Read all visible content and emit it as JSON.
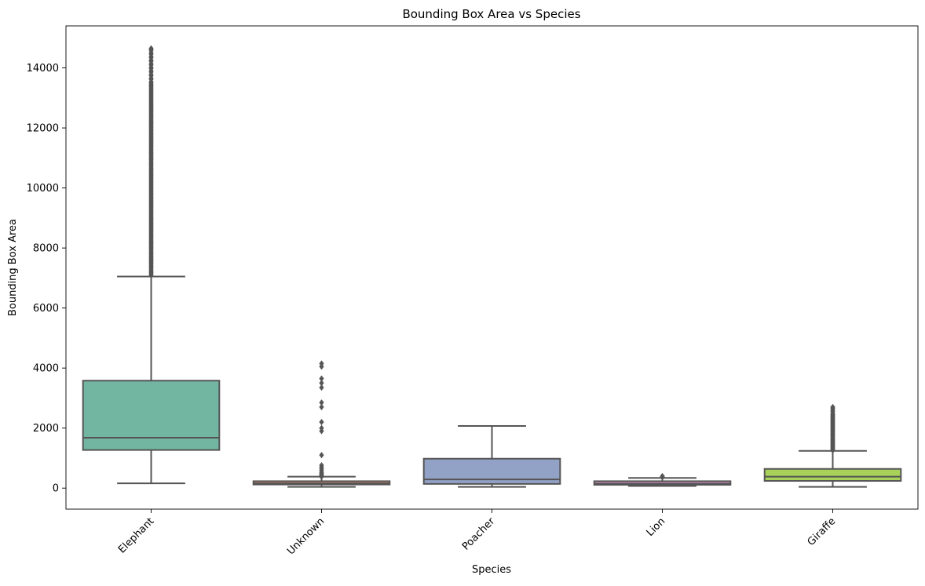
{
  "chart_data": {
    "type": "box",
    "title": "Bounding Box Area vs Species",
    "xlabel": "Species",
    "ylabel": "Bounding Box Area",
    "ylim": [
      -700,
      15400
    ],
    "yticks": [
      0,
      2000,
      4000,
      6000,
      8000,
      10000,
      12000,
      14000
    ],
    "ytick_labels": [
      "0",
      "2000",
      "4000",
      "6000",
      "8000",
      "10000",
      "12000",
      "14000"
    ],
    "categories": [
      "Elephant",
      "Unknown",
      "Poacher",
      "Lion",
      "Giraffe"
    ],
    "xtick_rotation_deg": 45,
    "grid": false,
    "legend": "none",
    "boxes": [
      {
        "category": "Elephant",
        "color": "#72b6a1",
        "whisker_low": 160,
        "q1": 1270,
        "median": 1680,
        "q3": 3580,
        "whisker_high": 7050,
        "outliers_range": [
          7100,
          14650
        ]
      },
      {
        "category": "Unknown",
        "color": "#e5896e",
        "whisker_low": 40,
        "q1": 120,
        "median": 160,
        "q3": 230,
        "whisker_high": 380,
        "outliers": [
          380,
          420,
          450,
          480,
          520,
          580,
          640,
          700,
          760,
          1100,
          1900,
          2000,
          2200,
          2700,
          2850,
          3350,
          3500,
          3650,
          4050,
          4150
        ]
      },
      {
        "category": "Poacher",
        "color": "#92a1c6",
        "whisker_low": 40,
        "q1": 140,
        "median": 290,
        "q3": 980,
        "whisker_high": 2070,
        "outliers": []
      },
      {
        "category": "Lion",
        "color": "#d58ec3",
        "whisker_low": 70,
        "q1": 110,
        "median": 150,
        "q3": 230,
        "whisker_high": 340,
        "outliers": [
          360,
          380,
          400
        ]
      },
      {
        "category": "Giraffe",
        "color": "#a8d15a",
        "whisker_low": 40,
        "q1": 240,
        "median": 380,
        "q3": 640,
        "whisker_high": 1240,
        "outliers_range": [
          1260,
          2700
        ]
      }
    ],
    "style": {
      "line_color": "#555555",
      "outlier_color": "#555555",
      "marker": "diamond"
    }
  }
}
